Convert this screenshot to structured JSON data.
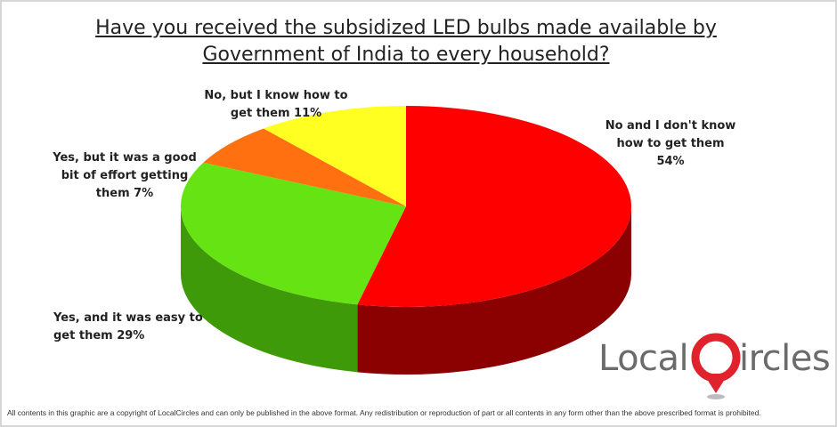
{
  "chart_data": {
    "type": "pie",
    "title_line1": "Have you received the subsidized LED bulbs made available by",
    "title_line2": "Government of India to every household?",
    "slices": [
      {
        "label_line1": "No and I don't know",
        "label_line2": "how to get them",
        "label_line3": "54%",
        "value": 54,
        "color": "#ff0000",
        "side": "#8b0000"
      },
      {
        "label_line1": "Yes, and it was easy to",
        "label_line2": "get them  29%",
        "value": 29,
        "color": "#66e312",
        "side": "#3f9a0a"
      },
      {
        "label_line1": "Yes, but it was a good",
        "label_line2": "bit of effort getting",
        "label_line3": "them  7%",
        "value": 7,
        "color": "#ff7010",
        "side": "#b34a05"
      },
      {
        "label_line1": "No, but I know how to",
        "label_line2": "get them 11%",
        "value": 11,
        "color": "#ffff22",
        "side": "#b8b800"
      }
    ]
  },
  "logo": {
    "text_left": "Local",
    "text_right": "ircles"
  },
  "footer": {
    "text": "All contents in this graphic are a copyright of LocalCircles and can only be published in the above format. Any redistribution or reproduction of part or all contents in any form other than the above prescribed format is prohibited."
  }
}
